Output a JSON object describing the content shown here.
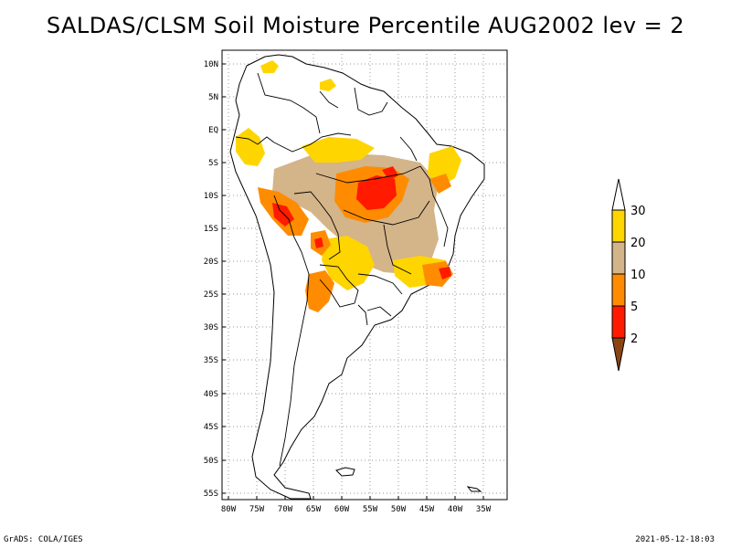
{
  "title": "SALDAS/CLSM Soil Moisture Percentile AUG2002 lev = 2",
  "axes": {
    "lat_labels": [
      "10N",
      "5N",
      "EQ",
      "5S",
      "10S",
      "15S",
      "20S",
      "25S",
      "30S",
      "35S",
      "40S",
      "45S",
      "50S",
      "55S"
    ],
    "lon_labels": [
      "80W",
      "75W",
      "70W",
      "65W",
      "60W",
      "55W",
      "50W",
      "45W",
      "40W",
      "35W"
    ]
  },
  "legend": {
    "labels": [
      "30",
      "20",
      "10",
      "5",
      "2"
    ],
    "colors": {
      "above": "#ffffff",
      "b20_30": "#ffd500",
      "b10_20": "#d4b489",
      "b5_10": "#ff8c00",
      "b2_5": "#ff1a00",
      "below2": "#8b4513"
    }
  },
  "colors": {
    "dry_yellow": "#ffd500",
    "dry_tan": "#d4b489",
    "dry_orange": "#ff8c00",
    "dry_red": "#ff1a00",
    "dry_brown": "#8b4513",
    "land_outline": "#000000",
    "grid": "#9a9a9a"
  },
  "credits": {
    "left": "GrADS: COLA/IGES",
    "right": "2021-05-12-18:03"
  }
}
